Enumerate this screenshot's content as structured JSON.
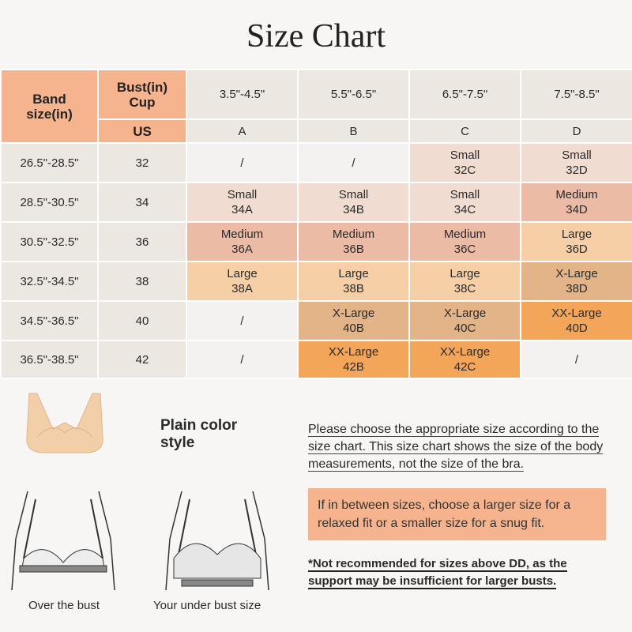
{
  "title": "Size Chart",
  "header": {
    "band": "Band size(in)",
    "bust": "Bust(in) Cup",
    "us": "US",
    "bust_ranges": [
      "3.5\"-4.5\"",
      "5.5\"-6.5\"",
      "6.5\"-7.5\"",
      "7.5\"-8.5\""
    ],
    "cups": [
      "A",
      "B",
      "C",
      "D"
    ]
  },
  "rows": [
    {
      "band": "26.5\"-28.5\"",
      "us": "32",
      "cells": [
        [
          "/",
          ""
        ],
        [
          "/",
          ""
        ],
        [
          "Small",
          "32C"
        ],
        [
          "Small",
          "32D"
        ]
      ]
    },
    {
      "band": "28.5\"-30.5\"",
      "us": "34",
      "cells": [
        [
          "Small",
          "34A"
        ],
        [
          "Small",
          "34B"
        ],
        [
          "Small",
          "34C"
        ],
        [
          "Medium",
          "34D"
        ]
      ]
    },
    {
      "band": "30.5\"-32.5\"",
      "us": "36",
      "cells": [
        [
          "Medium",
          "36A"
        ],
        [
          "Medium",
          "36B"
        ],
        [
          "Medium",
          "36C"
        ],
        [
          "Large",
          "36D"
        ]
      ]
    },
    {
      "band": "32.5\"-34.5\"",
      "us": "38",
      "cells": [
        [
          "Large",
          "38A"
        ],
        [
          "Large",
          "38B"
        ],
        [
          "Large",
          "38C"
        ],
        [
          "X-Large",
          "38D"
        ]
      ]
    },
    {
      "band": "34.5\"-36.5\"",
      "us": "40",
      "cells": [
        [
          "/",
          ""
        ],
        [
          "X-Large",
          "40B"
        ],
        [
          "X-Large",
          "40C"
        ],
        [
          "XX-Large",
          "40D"
        ]
      ]
    },
    {
      "band": "36.5\"-38.5\"",
      "us": "42",
      "cells": [
        [
          "/",
          ""
        ],
        [
          "XX-Large",
          "42B"
        ],
        [
          "XX-Large",
          "42C"
        ],
        [
          "/",
          ""
        ]
      ]
    }
  ],
  "colors": {
    "header": "#f6b48e",
    "Small": "#f0dcd0",
    "Medium": "#ecbba6",
    "Large": "#f7cfa6",
    "X-Large": "#e2b487",
    "XX-Large": "#f3a55a",
    "empty": "#f3f2f1"
  },
  "style_label": "Plain color style",
  "note": "Please choose the appropriate size according to the size chart. This size chart shows the size of the body measurements, not the size of the bra.",
  "tip": "If in between sizes, choose a larger size for a relaxed fit or a smaller size for a snug fit.",
  "warning": "*Not recommended for sizes above DD, as the support may be insufficient for larger busts.",
  "captions": [
    "Over the bust",
    "Your under bust size"
  ]
}
